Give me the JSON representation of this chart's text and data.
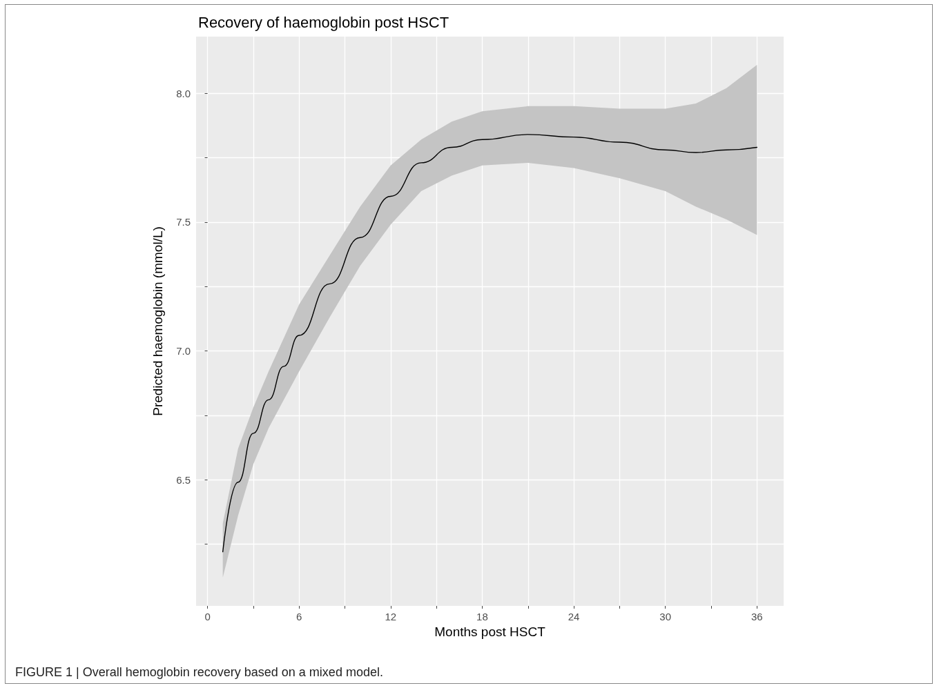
{
  "chart_data": {
    "type": "line",
    "title": "Recovery of haemoglobin post HSCT",
    "xlabel": "Months post HSCT",
    "ylabel": "Predicted haemoglobin (mmol/L)",
    "annotations": [
      "FIGURE 1 | Overall hemoglobin recovery based on a mixed model."
    ],
    "xlim": [
      -0.75,
      37.75
    ],
    "xticks": [
      0,
      {
        "value": 3,
        "label": null
      },
      6,
      {
        "value": 9,
        "label": null
      },
      12,
      {
        "value": 15,
        "label": null
      },
      18,
      {
        "value": 21,
        "label": null
      },
      24,
      {
        "value": 27,
        "label": null
      },
      30,
      {
        "value": 33,
        "label": null
      },
      36
    ],
    "ylim": [
      6.01,
      8.22
    ],
    "yticks": [
      {
        "value": 6.25,
        "label": null
      },
      {
        "value": 6.5,
        "label": "6.5"
      },
      {
        "value": 6.75,
        "label": null
      },
      {
        "value": 7,
        "label": "7.0"
      },
      {
        "value": 7.25,
        "label": null
      },
      {
        "value": 7.5,
        "label": "7.5"
      },
      {
        "value": 7.75,
        "label": null
      },
      {
        "value": 8,
        "label": "8.0"
      }
    ],
    "grid": true,
    "marker": "none",
    "line_style": "solid",
    "series": [
      {
        "color": "#000000",
        "x": [
          1,
          2,
          3,
          4,
          5,
          6,
          8,
          10,
          12,
          14,
          16,
          18,
          21,
          24,
          27,
          30,
          32,
          34,
          36
        ],
        "values": [
          6.22,
          6.49,
          6.68,
          6.81,
          6.94,
          7.06,
          7.26,
          7.44,
          7.6,
          7.73,
          7.79,
          7.82,
          7.84,
          7.83,
          7.81,
          7.78,
          7.77,
          7.78,
          7.79
        ],
        "upper": [
          6.33,
          6.62,
          6.78,
          6.92,
          7.05,
          7.18,
          7.37,
          7.56,
          7.72,
          7.82,
          7.89,
          7.93,
          7.95,
          7.95,
          7.94,
          7.94,
          7.96,
          8.02,
          8.11
        ],
        "lower": [
          6.12,
          6.36,
          6.56,
          6.7,
          6.81,
          6.92,
          7.13,
          7.33,
          7.49,
          7.62,
          7.68,
          7.72,
          7.73,
          7.71,
          7.67,
          7.62,
          7.56,
          7.51,
          7.45
        ]
      }
    ]
  }
}
